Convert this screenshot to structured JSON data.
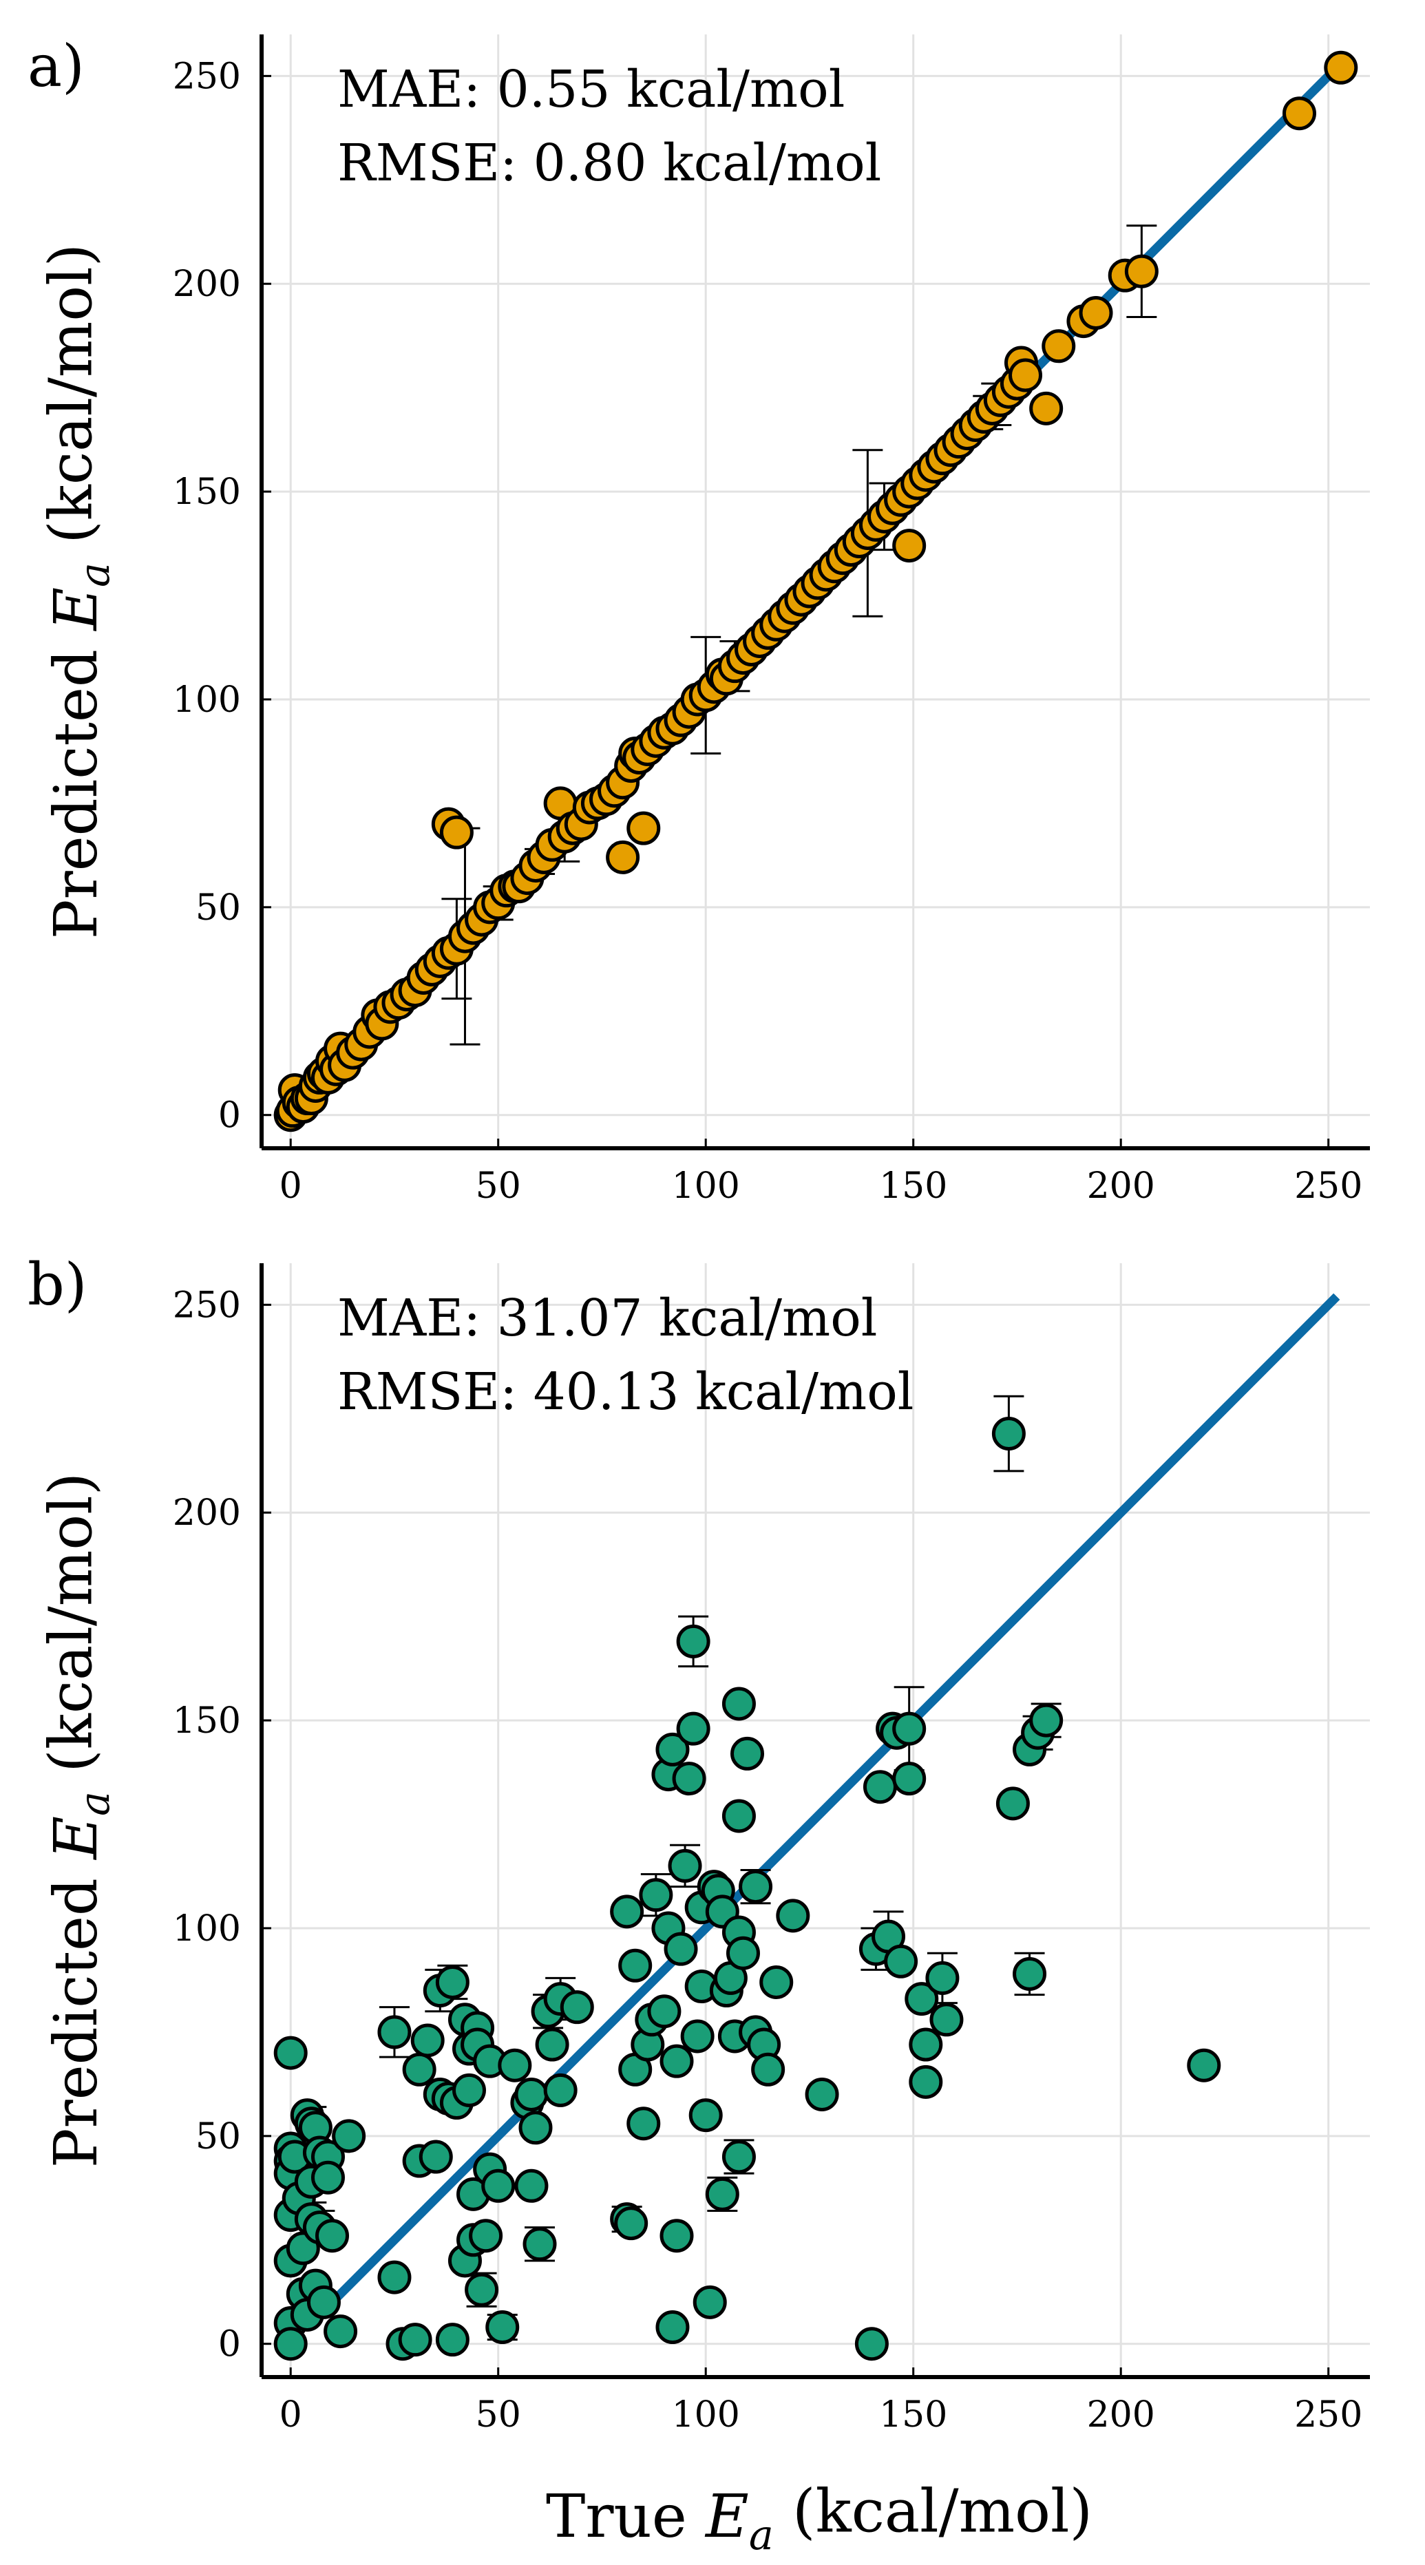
{
  "chart_data": [
    {
      "panel": "a)",
      "type": "scatter",
      "title": "",
      "xlabel": "True E_a (kcal/mol)",
      "ylabel": "Predicted E_a (kcal/mol)",
      "xlim": [
        -7,
        260
      ],
      "ylim": [
        -8,
        260
      ],
      "xticks": [
        0,
        50,
        100,
        150,
        200,
        250
      ],
      "yticks": [
        0,
        50,
        100,
        150,
        200,
        250
      ],
      "grid": true,
      "annotations": [
        "MAE: 0.55 kcal/mol",
        "RMSE: 0.80 kcal/mol"
      ],
      "reference_line": {
        "x": [
          0,
          252
        ],
        "y": [
          0,
          252
        ],
        "color": "#0a6aa6"
      },
      "marker_color": "#e69f00",
      "points": [
        [
          0,
          0
        ],
        [
          0.5,
          1
        ],
        [
          1,
          6
        ],
        [
          2,
          3
        ],
        [
          3,
          2
        ],
        [
          4,
          4
        ],
        [
          5,
          4
        ],
        [
          6,
          7
        ],
        [
          7,
          9
        ],
        [
          8,
          10
        ],
        [
          9,
          9
        ],
        [
          10,
          13
        ],
        [
          11,
          11
        ],
        [
          12,
          16
        ],
        [
          13,
          12
        ],
        [
          15,
          15
        ],
        [
          17,
          17
        ],
        [
          19,
          20
        ],
        [
          21,
          24
        ],
        [
          22,
          22
        ],
        [
          24,
          26
        ],
        [
          26,
          27
        ],
        [
          28,
          29
        ],
        [
          30,
          30
        ],
        [
          32,
          33
        ],
        [
          34,
          35
        ],
        [
          36,
          37
        ],
        [
          38,
          39
        ],
        [
          38,
          70
        ],
        [
          40,
          68
        ],
        [
          40,
          40
        ],
        [
          42,
          43
        ],
        [
          44,
          45
        ],
        [
          46,
          47
        ],
        [
          48,
          50
        ],
        [
          50,
          51
        ],
        [
          52,
          54
        ],
        [
          54,
          55
        ],
        [
          55,
          55
        ],
        [
          57,
          57
        ],
        [
          59,
          60
        ],
        [
          61,
          62
        ],
        [
          63,
          65
        ],
        [
          65,
          75
        ],
        [
          66,
          67
        ],
        [
          68,
          69
        ],
        [
          70,
          70
        ],
        [
          72,
          74
        ],
        [
          74,
          75
        ],
        [
          76,
          76
        ],
        [
          78,
          78
        ],
        [
          80,
          62
        ],
        [
          80,
          80
        ],
        [
          82,
          84
        ],
        [
          83,
          87
        ],
        [
          84,
          86
        ],
        [
          85,
          69
        ],
        [
          86,
          88
        ],
        [
          88,
          90
        ],
        [
          90,
          92
        ],
        [
          92,
          93
        ],
        [
          94,
          95
        ],
        [
          96,
          97
        ],
        [
          98,
          100
        ],
        [
          100,
          101
        ],
        [
          102,
          103
        ],
        [
          104,
          106
        ],
        [
          105,
          105
        ],
        [
          107,
          108
        ],
        [
          109,
          110
        ],
        [
          111,
          112
        ],
        [
          113,
          114
        ],
        [
          115,
          116
        ],
        [
          117,
          118
        ],
        [
          119,
          120
        ],
        [
          121,
          122
        ],
        [
          123,
          124
        ],
        [
          125,
          126
        ],
        [
          127,
          128
        ],
        [
          129,
          130
        ],
        [
          131,
          132
        ],
        [
          133,
          134
        ],
        [
          135,
          136
        ],
        [
          137,
          138
        ],
        [
          139,
          140
        ],
        [
          141,
          142
        ],
        [
          143,
          144
        ],
        [
          145,
          146
        ],
        [
          147,
          148
        ],
        [
          149,
          137
        ],
        [
          149,
          150
        ],
        [
          151,
          152
        ],
        [
          153,
          154
        ],
        [
          155,
          156
        ],
        [
          157,
          158
        ],
        [
          159,
          160
        ],
        [
          161,
          162
        ],
        [
          163,
          164
        ],
        [
          165,
          166
        ],
        [
          167,
          168
        ],
        [
          169,
          170
        ],
        [
          171,
          172
        ],
        [
          173,
          174
        ],
        [
          175,
          176
        ],
        [
          176,
          181
        ],
        [
          177,
          178
        ],
        [
          182,
          170
        ],
        [
          185,
          185
        ],
        [
          191,
          191
        ],
        [
          194,
          193
        ],
        [
          201,
          202
        ],
        [
          205,
          203
        ],
        [
          243,
          241
        ],
        [
          253,
          252
        ]
      ],
      "error_bars": [
        [
          42,
          43,
          26
        ],
        [
          40,
          40,
          12
        ],
        [
          100,
          101,
          14
        ],
        [
          107,
          108,
          6
        ],
        [
          139,
          140,
          20
        ],
        [
          143,
          144,
          8
        ],
        [
          168,
          169,
          4
        ],
        [
          205,
          203,
          11
        ],
        [
          50,
          51,
          4
        ],
        [
          60,
          61,
          3
        ],
        [
          66,
          67,
          6
        ],
        [
          170,
          171,
          5
        ]
      ]
    },
    {
      "panel": "b)",
      "type": "scatter",
      "title": "",
      "xlabel": "True E_a (kcal/mol)",
      "ylabel": "Predicted E_a (kcal/mol)",
      "xlim": [
        -7,
        260
      ],
      "ylim": [
        -8,
        260
      ],
      "xticks": [
        0,
        50,
        100,
        150,
        200,
        250
      ],
      "yticks": [
        0,
        50,
        100,
        150,
        200,
        250
      ],
      "grid": true,
      "annotations": [
        "MAE: 31.07 kcal/mol",
        "RMSE: 40.13 kcal/mol"
      ],
      "reference_line": {
        "x": [
          10,
          252
        ],
        "y": [
          10,
          252
        ],
        "color": "#0a6aa6"
      },
      "marker_color": "#1a9e77",
      "points": [
        [
          0,
          70
        ],
        [
          0,
          47
        ],
        [
          0,
          44
        ],
        [
          0,
          41
        ],
        [
          0,
          31
        ],
        [
          0,
          20
        ],
        [
          0,
          5
        ],
        [
          0,
          0
        ],
        [
          1,
          45
        ],
        [
          2,
          35
        ],
        [
          3,
          23
        ],
        [
          3,
          12
        ],
        [
          4,
          55
        ],
        [
          4,
          7
        ],
        [
          5,
          53
        ],
        [
          5,
          39
        ],
        [
          5,
          30
        ],
        [
          6,
          52
        ],
        [
          6,
          14
        ],
        [
          7,
          28
        ],
        [
          7,
          46
        ],
        [
          8,
          10
        ],
        [
          9,
          45
        ],
        [
          9,
          40
        ],
        [
          10,
          26
        ],
        [
          12,
          3
        ],
        [
          14,
          50
        ],
        [
          25,
          75
        ],
        [
          25,
          16
        ],
        [
          27,
          0
        ],
        [
          30,
          1
        ],
        [
          31,
          66
        ],
        [
          31,
          44
        ],
        [
          33,
          73
        ],
        [
          35,
          45
        ],
        [
          36,
          85
        ],
        [
          36,
          60
        ],
        [
          38,
          59
        ],
        [
          39,
          87
        ],
        [
          39,
          1
        ],
        [
          40,
          58
        ],
        [
          42,
          78
        ],
        [
          42,
          20
        ],
        [
          43,
          71
        ],
        [
          43,
          61
        ],
        [
          44,
          36
        ],
        [
          44,
          25
        ],
        [
          45,
          76
        ],
        [
          45,
          72
        ],
        [
          46,
          13
        ],
        [
          47,
          26
        ],
        [
          48,
          68
        ],
        [
          48,
          42
        ],
        [
          50,
          38
        ],
        [
          51,
          4
        ],
        [
          54,
          67
        ],
        [
          57,
          58
        ],
        [
          58,
          60
        ],
        [
          58,
          38
        ],
        [
          59,
          52
        ],
        [
          60,
          24
        ],
        [
          62,
          80
        ],
        [
          63,
          72
        ],
        [
          65,
          83
        ],
        [
          65,
          61
        ],
        [
          69,
          81
        ],
        [
          81,
          104
        ],
        [
          81,
          30
        ],
        [
          82,
          29
        ],
        [
          83,
          66
        ],
        [
          83,
          91
        ],
        [
          85,
          53
        ],
        [
          86,
          72
        ],
        [
          87,
          78
        ],
        [
          88,
          108
        ],
        [
          90,
          80
        ],
        [
          91,
          137
        ],
        [
          91,
          100
        ],
        [
          92,
          143
        ],
        [
          92,
          4
        ],
        [
          93,
          26
        ],
        [
          93,
          68
        ],
        [
          94,
          95
        ],
        [
          95,
          115
        ],
        [
          96,
          136
        ],
        [
          97,
          148
        ],
        [
          97,
          169
        ],
        [
          98,
          74
        ],
        [
          99,
          105
        ],
        [
          99,
          86
        ],
        [
          100,
          55
        ],
        [
          101,
          10
        ],
        [
          102,
          110
        ],
        [
          103,
          109
        ],
        [
          104,
          104
        ],
        [
          104,
          36
        ],
        [
          105,
          85
        ],
        [
          106,
          88
        ],
        [
          107,
          74
        ],
        [
          108,
          127
        ],
        [
          108,
          154
        ],
        [
          108,
          99
        ],
        [
          108,
          45
        ],
        [
          109,
          94
        ],
        [
          110,
          142
        ],
        [
          112,
          110
        ],
        [
          112,
          75
        ],
        [
          114,
          72
        ],
        [
          115,
          66
        ],
        [
          117,
          87
        ],
        [
          121,
          103
        ],
        [
          128,
          60
        ],
        [
          140,
          0
        ],
        [
          141,
          95
        ],
        [
          142,
          134
        ],
        [
          144,
          98
        ],
        [
          145,
          148
        ],
        [
          146,
          147
        ],
        [
          147,
          92
        ],
        [
          149,
          148
        ],
        [
          149,
          136
        ],
        [
          152,
          83
        ],
        [
          153,
          72
        ],
        [
          153,
          63
        ],
        [
          157,
          88
        ],
        [
          158,
          78
        ],
        [
          173,
          219
        ],
        [
          174,
          130
        ],
        [
          178,
          143
        ],
        [
          178,
          89
        ],
        [
          180,
          147
        ],
        [
          182,
          150
        ],
        [
          220,
          67
        ]
      ],
      "error_bars": [
        [
          173,
          219,
          9
        ],
        [
          149,
          148,
          10
        ],
        [
          144,
          98,
          6
        ],
        [
          141,
          95,
          5
        ],
        [
          182,
          150,
          4
        ],
        [
          180,
          147,
          4
        ],
        [
          97,
          169,
          6
        ],
        [
          25,
          75,
          6
        ],
        [
          36,
          85,
          5
        ],
        [
          39,
          87,
          4
        ],
        [
          62,
          80,
          4
        ],
        [
          65,
          83,
          5
        ],
        [
          88,
          108,
          5
        ],
        [
          95,
          115,
          5
        ],
        [
          112,
          110,
          4
        ],
        [
          157,
          88,
          6
        ],
        [
          178,
          89,
          5
        ],
        [
          5,
          53,
          4
        ],
        [
          5,
          30,
          4
        ],
        [
          7,
          28,
          4
        ],
        [
          81,
          30,
          3
        ],
        [
          60,
          24,
          4
        ],
        [
          104,
          36,
          4
        ],
        [
          108,
          45,
          4
        ],
        [
          46,
          13,
          4
        ],
        [
          51,
          4,
          3
        ]
      ]
    }
  ]
}
